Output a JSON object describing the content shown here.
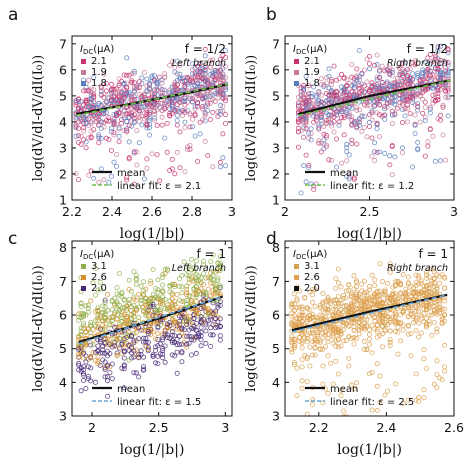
{
  "chart_data": [
    {
      "panel": "a",
      "type": "scatter",
      "f_label": "f = 1/2",
      "branch": "Left branch",
      "legend_title": "I₀c(μA)",
      "legend_title_main": "I",
      "legend_title_sub": "DC",
      "legend_title_unit": "(μA)",
      "series": [
        {
          "name": "2.1",
          "color": "#c8326e"
        },
        {
          "name": "1.9",
          "color": "#c87a9a"
        },
        {
          "name": "1.8",
          "color": "#5a7fc0"
        }
      ],
      "mean_label": "mean",
      "fit_label": "linear fit: ε = 2.1",
      "fit_color": "#6fbf4a",
      "xlim": [
        2.2,
        3.0
      ],
      "ylim": [
        1.0,
        7.3
      ],
      "xticks": [
        "2.2",
        "2.4",
        "2.6",
        "2.8",
        "3"
      ],
      "xtick_values": [
        2.2,
        2.4,
        2.6,
        2.8,
        3.0
      ],
      "yticks": [
        "1",
        "2",
        "3",
        "4",
        "5",
        "6",
        "7"
      ],
      "ytick_values": [
        1,
        2,
        3,
        4,
        5,
        6,
        7
      ],
      "mean_line": {
        "x": [
          2.22,
          2.5,
          2.8,
          2.98
        ],
        "y": [
          4.3,
          4.7,
          5.15,
          5.45
        ]
      },
      "fit_line": {
        "x": [
          2.22,
          2.98
        ],
        "y": [
          4.25,
          5.45
        ]
      }
    },
    {
      "panel": "b",
      "type": "scatter",
      "f_label": "f = 1/2",
      "branch": "Right branch",
      "legend_title_main": "I",
      "legend_title_sub": "DC",
      "legend_title_unit": "(μA)",
      "series": [
        {
          "name": "2.1",
          "color": "#c8326e"
        },
        {
          "name": "1.9",
          "color": "#c87a9a"
        },
        {
          "name": "1.8",
          "color": "#5a7fc0"
        }
      ],
      "mean_label": "mean",
      "fit_label": "linear fit: ε = 1.2",
      "fit_color": "#6fbf4a",
      "xlim": [
        2.0,
        3.0
      ],
      "ylim": [
        1.0,
        7.3
      ],
      "xticks": [
        "2",
        "2.5",
        "3"
      ],
      "xtick_values": [
        2.0,
        2.5,
        3.0
      ],
      "yticks": [
        "1",
        "2",
        "3",
        "4",
        "5",
        "6",
        "7"
      ],
      "ytick_values": [
        1,
        2,
        3,
        4,
        5,
        6,
        7
      ],
      "mean_line": {
        "x": [
          2.08,
          2.5,
          2.98
        ],
        "y": [
          4.3,
          5.0,
          5.6
        ]
      },
      "fit_line": {
        "x": [
          2.08,
          2.98
        ],
        "y": [
          4.25,
          5.6
        ]
      }
    },
    {
      "panel": "c",
      "type": "scatter",
      "f_label": "f = 1",
      "branch": "Left branch",
      "legend_title_main": "I",
      "legend_title_sub": "DC",
      "legend_title_unit": "(μA)",
      "series": [
        {
          "name": "3.1",
          "color": "#8fb04a"
        },
        {
          "name": "2.6",
          "color": "#d8902e"
        },
        {
          "name": "2.0",
          "color": "#4a2a78"
        }
      ],
      "mean_label": "mean",
      "fit_label": "linear fit: ε = 1.5",
      "fit_color": "#6aa8d8",
      "xlim": [
        1.85,
        3.05
      ],
      "ylim": [
        3.0,
        8.2
      ],
      "xticks": [
        "2",
        "2.5",
        "3"
      ],
      "xtick_values": [
        2.0,
        2.5,
        3.0
      ],
      "yticks": [
        "3",
        "4",
        "5",
        "6",
        "7",
        "8"
      ],
      "ytick_values": [
        3,
        4,
        5,
        6,
        7,
        8
      ],
      "mean_line": {
        "x": [
          1.9,
          2.5,
          2.98
        ],
        "y": [
          5.2,
          5.9,
          6.55
        ]
      },
      "fit_line": {
        "x": [
          1.9,
          2.98
        ],
        "y": [
          5.15,
          6.55
        ]
      }
    },
    {
      "panel": "d",
      "type": "scatter",
      "f_label": "f = 1",
      "branch": "Right branch",
      "legend_title_main": "I",
      "legend_title_sub": "DC",
      "legend_title_unit": "(μA)",
      "series": [
        {
          "name": "3.1",
          "color": "#d4a24e"
        },
        {
          "name": "2.6",
          "color": "#e0a050"
        },
        {
          "name": "2.0",
          "color": "#111111"
        }
      ],
      "mean_label": "mean",
      "fit_label": "linear fit: ε = 2.5",
      "fit_color": "#6aa8d8",
      "xlim": [
        2.1,
        2.6
      ],
      "ylim": [
        3.0,
        8.2
      ],
      "xticks": [
        "2.2",
        "2.4",
        "2.6"
      ],
      "xtick_values": [
        2.2,
        2.4,
        2.6
      ],
      "yticks": [
        "3",
        "4",
        "5",
        "6",
        "7",
        "8"
      ],
      "ytick_values": [
        3,
        4,
        5,
        6,
        7,
        8
      ],
      "mean_line": {
        "x": [
          2.12,
          2.35,
          2.58
        ],
        "y": [
          5.55,
          6.1,
          6.6
        ]
      },
      "fit_line": {
        "x": [
          2.12,
          2.58
        ],
        "y": [
          5.5,
          6.6
        ]
      }
    }
  ],
  "panel_letters": [
    "a",
    "b",
    "c",
    "d"
  ],
  "ylabel": "log(dV/dI-dV/dI(I₀))",
  "xlabel": "log(1/|b|)"
}
